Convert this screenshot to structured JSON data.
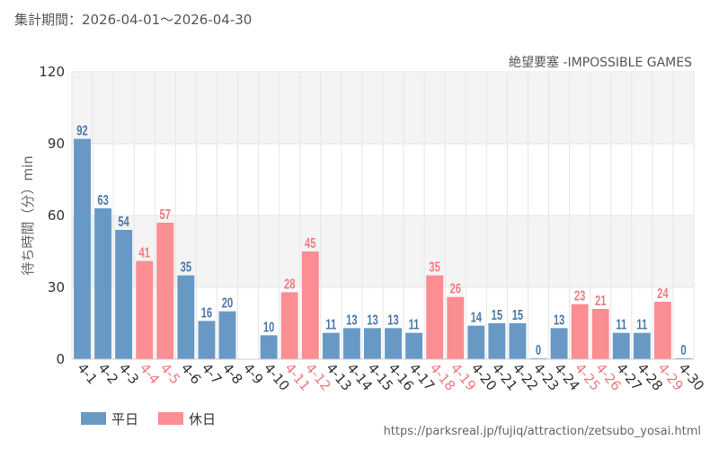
{
  "period_label": "集計期間：2026-04-01～2026-04-30",
  "source_url": "https://parksreal.jp/fujiq/attraction/zetsubo_yosai.html",
  "colors": {
    "weekday": "#6899c5",
    "holiday": "#fa8e93",
    "weekday_text": "#4a78aa",
    "holiday_text": "#f07a80",
    "band": "#f4f4f4",
    "grid": "#e6e6e6",
    "axis_text": "#333333"
  },
  "chart_data": {
    "type": "bar",
    "title": "絶望要塞 -IMPOSSIBLE GAMES",
    "ylabel": "待ち時間（分）min",
    "ylim": [
      0,
      120
    ],
    "yticks": [
      "0",
      "30",
      "60",
      "90",
      "120"
    ],
    "grid": true,
    "categories": [
      "4-1",
      "4-2",
      "4-3",
      "4-4",
      "4-5",
      "4-6",
      "4-7",
      "4-8",
      "4-9",
      "4-10",
      "4-11",
      "4-12",
      "4-13",
      "4-14",
      "4-15",
      "4-16",
      "4-17",
      "4-18",
      "4-19",
      "4-20",
      "4-21",
      "4-22",
      "4-23",
      "4-24",
      "4-25",
      "4-26",
      "4-27",
      "4-28",
      "4-29",
      "4-30"
    ],
    "values": [
      92,
      63,
      54,
      41,
      57,
      35,
      16,
      20,
      null,
      10,
      28,
      45,
      11,
      13,
      13,
      13,
      11,
      35,
      26,
      14,
      15,
      15,
      0,
      13,
      23,
      21,
      11,
      11,
      24,
      0
    ],
    "day_type": [
      "平日",
      "平日",
      "平日",
      "休日",
      "休日",
      "平日",
      "平日",
      "平日",
      "平日",
      "平日",
      "休日",
      "休日",
      "平日",
      "平日",
      "平日",
      "平日",
      "平日",
      "休日",
      "休日",
      "平日",
      "平日",
      "平日",
      "平日",
      "平日",
      "休日",
      "休日",
      "平日",
      "平日",
      "休日",
      "平日"
    ],
    "legend": [
      {
        "name": "平日",
        "key": "weekday"
      },
      {
        "name": "休日",
        "key": "holiday"
      }
    ],
    "legend_position": "bottom-left"
  }
}
